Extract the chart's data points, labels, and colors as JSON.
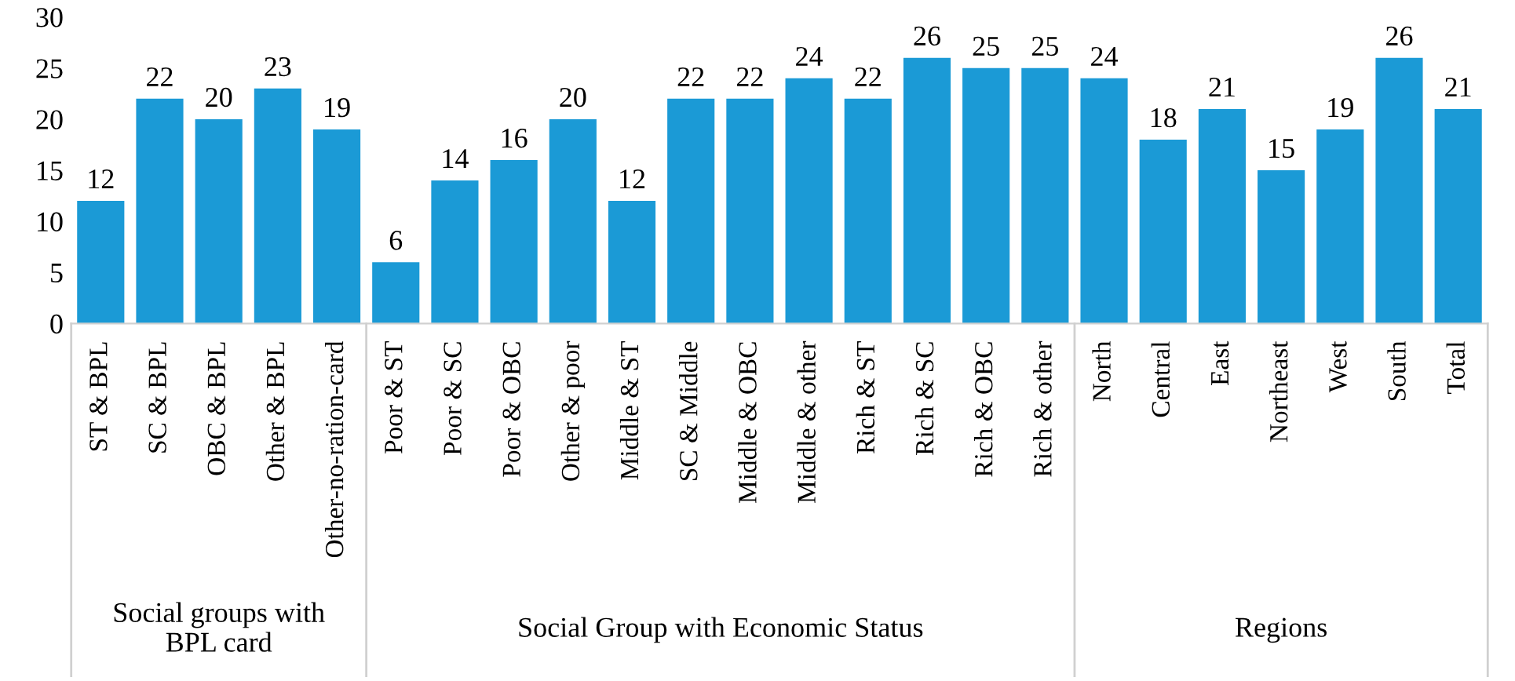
{
  "chart_data": {
    "type": "bar",
    "categories": [
      "ST & BPL",
      "SC & BPL",
      "OBC & BPL",
      "Other & BPL",
      "Other-no-ration-card",
      "Poor & ST",
      "Poor & SC",
      "Poor & OBC",
      "Other & poor",
      "Middle & ST",
      "SC & Middle",
      "Middle & OBC",
      "Middle & other",
      "Rich & ST",
      "Rich & SC",
      "Rich & OBC",
      "Rich & other",
      "North",
      "Central",
      "East",
      "Northeast",
      "West",
      "South",
      "Total"
    ],
    "values": [
      12,
      22,
      20,
      23,
      19,
      6,
      14,
      16,
      20,
      12,
      22,
      22,
      24,
      22,
      26,
      25,
      25,
      24,
      18,
      21,
      15,
      19,
      26,
      21
    ],
    "color": "#1b9ad6",
    "ylim": [
      0,
      30
    ],
    "yticks": [
      0,
      5,
      10,
      15,
      20,
      25,
      30
    ],
    "grid": false,
    "data_labels": true,
    "annotations": [
      "Social groups with\nBPL card",
      "Social Group with Economic Status",
      "Regions"
    ]
  }
}
